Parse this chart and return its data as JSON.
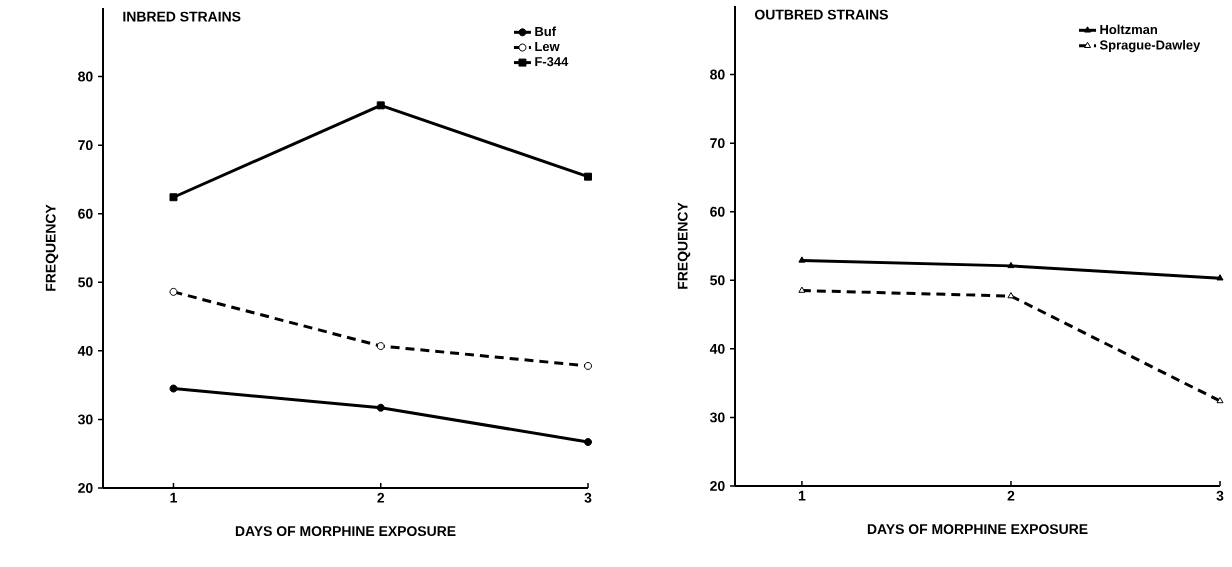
{
  "chart_data": [
    {
      "type": "line",
      "title": "INBRED STRAINS",
      "xlabel": "DAYS OF MORPHINE EXPOSURE",
      "ylabel": "FREQUENCY",
      "x": [
        1,
        2,
        3
      ],
      "xlim": [
        0.66,
        3
      ],
      "xticks": [
        1,
        2,
        3
      ],
      "ylim": [
        20,
        90
      ],
      "yticks": [
        20,
        30,
        40,
        50,
        60,
        70,
        80
      ],
      "legend": "top right",
      "grid": false,
      "series": [
        {
          "name": "Buf",
          "color": "#000000",
          "marker": "circle",
          "line_style": "solid",
          "values": [
            34.5,
            31.7,
            26.7
          ]
        },
        {
          "name": "Lew",
          "color": "#000000",
          "marker": "circle",
          "line_style": "dashed",
          "values": [
            48.6,
            40.7,
            37.8
          ]
        },
        {
          "name": "F-344",
          "color": "#000000",
          "marker": "square",
          "line_style": "solid",
          "values": [
            62.4,
            75.8,
            65.4
          ]
        }
      ]
    },
    {
      "type": "line",
      "title": "OUTBRED STRAINS",
      "xlabel": "DAYS OF MORPHINE EXPOSURE",
      "ylabel": "FREQUENCY",
      "x": [
        1,
        2,
        3
      ],
      "xlim": [
        0.68,
        3
      ],
      "xticks": [
        1,
        2,
        3
      ],
      "ylim": [
        20,
        90
      ],
      "yticks": [
        20,
        30,
        40,
        50,
        60,
        70,
        80
      ],
      "legend": "top right",
      "grid": false,
      "series": [
        {
          "name": "Holtzman",
          "color": "#000000",
          "marker": "triangle",
          "line_style": "solid",
          "values": [
            52.9,
            52.1,
            50.3
          ]
        },
        {
          "name": "Sprague-Dawley",
          "color": "#000000",
          "marker": "triangle",
          "line_style": "dashed",
          "values": [
            48.5,
            47.7,
            32.4
          ]
        }
      ]
    }
  ]
}
